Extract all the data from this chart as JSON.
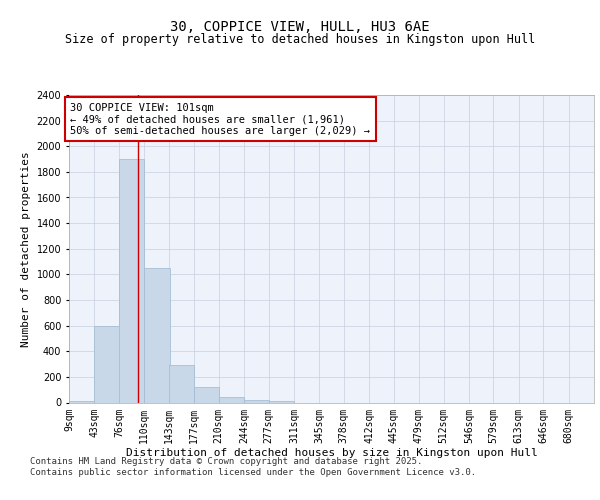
{
  "title1": "30, COPPICE VIEW, HULL, HU3 6AE",
  "title2": "Size of property relative to detached houses in Kingston upon Hull",
  "xlabel": "Distribution of detached houses by size in Kingston upon Hull",
  "ylabel": "Number of detached properties",
  "categories": [
    "9sqm",
    "43sqm",
    "76sqm",
    "110sqm",
    "143sqm",
    "177sqm",
    "210sqm",
    "244sqm",
    "277sqm",
    "311sqm",
    "345sqm",
    "378sqm",
    "412sqm",
    "445sqm",
    "479sqm",
    "512sqm",
    "546sqm",
    "579sqm",
    "613sqm",
    "646sqm",
    "680sqm"
  ],
  "bin_edges": [
    9,
    43,
    76,
    110,
    143,
    177,
    210,
    244,
    277,
    311,
    345,
    378,
    412,
    445,
    479,
    512,
    546,
    579,
    613,
    646,
    680
  ],
  "bin_width": 34,
  "values": [
    15,
    600,
    1900,
    1050,
    290,
    120,
    40,
    20,
    10,
    0,
    0,
    0,
    0,
    0,
    0,
    0,
    0,
    0,
    0,
    0,
    0
  ],
  "bar_color": "#c8d8e8",
  "bar_edge_color": "#a0b8d0",
  "vline_x": 101,
  "vline_color": "#cc0000",
  "ylim": [
    0,
    2400
  ],
  "yticks": [
    0,
    200,
    400,
    600,
    800,
    1000,
    1200,
    1400,
    1600,
    1800,
    2000,
    2200,
    2400
  ],
  "annotation_text": "30 COPPICE VIEW: 101sqm\n← 49% of detached houses are smaller (1,961)\n50% of semi-detached houses are larger (2,029) →",
  "annotation_box_color": "#cc0000",
  "bg_color": "#eef2fa",
  "footer_text": "Contains HM Land Registry data © Crown copyright and database right 2025.\nContains public sector information licensed under the Open Government Licence v3.0.",
  "grid_color": "#c8d0e0",
  "title1_fontsize": 10,
  "title2_fontsize": 8.5,
  "xlabel_fontsize": 8,
  "ylabel_fontsize": 8,
  "tick_fontsize": 7,
  "annotation_fontsize": 7.5,
  "footer_fontsize": 6.5
}
